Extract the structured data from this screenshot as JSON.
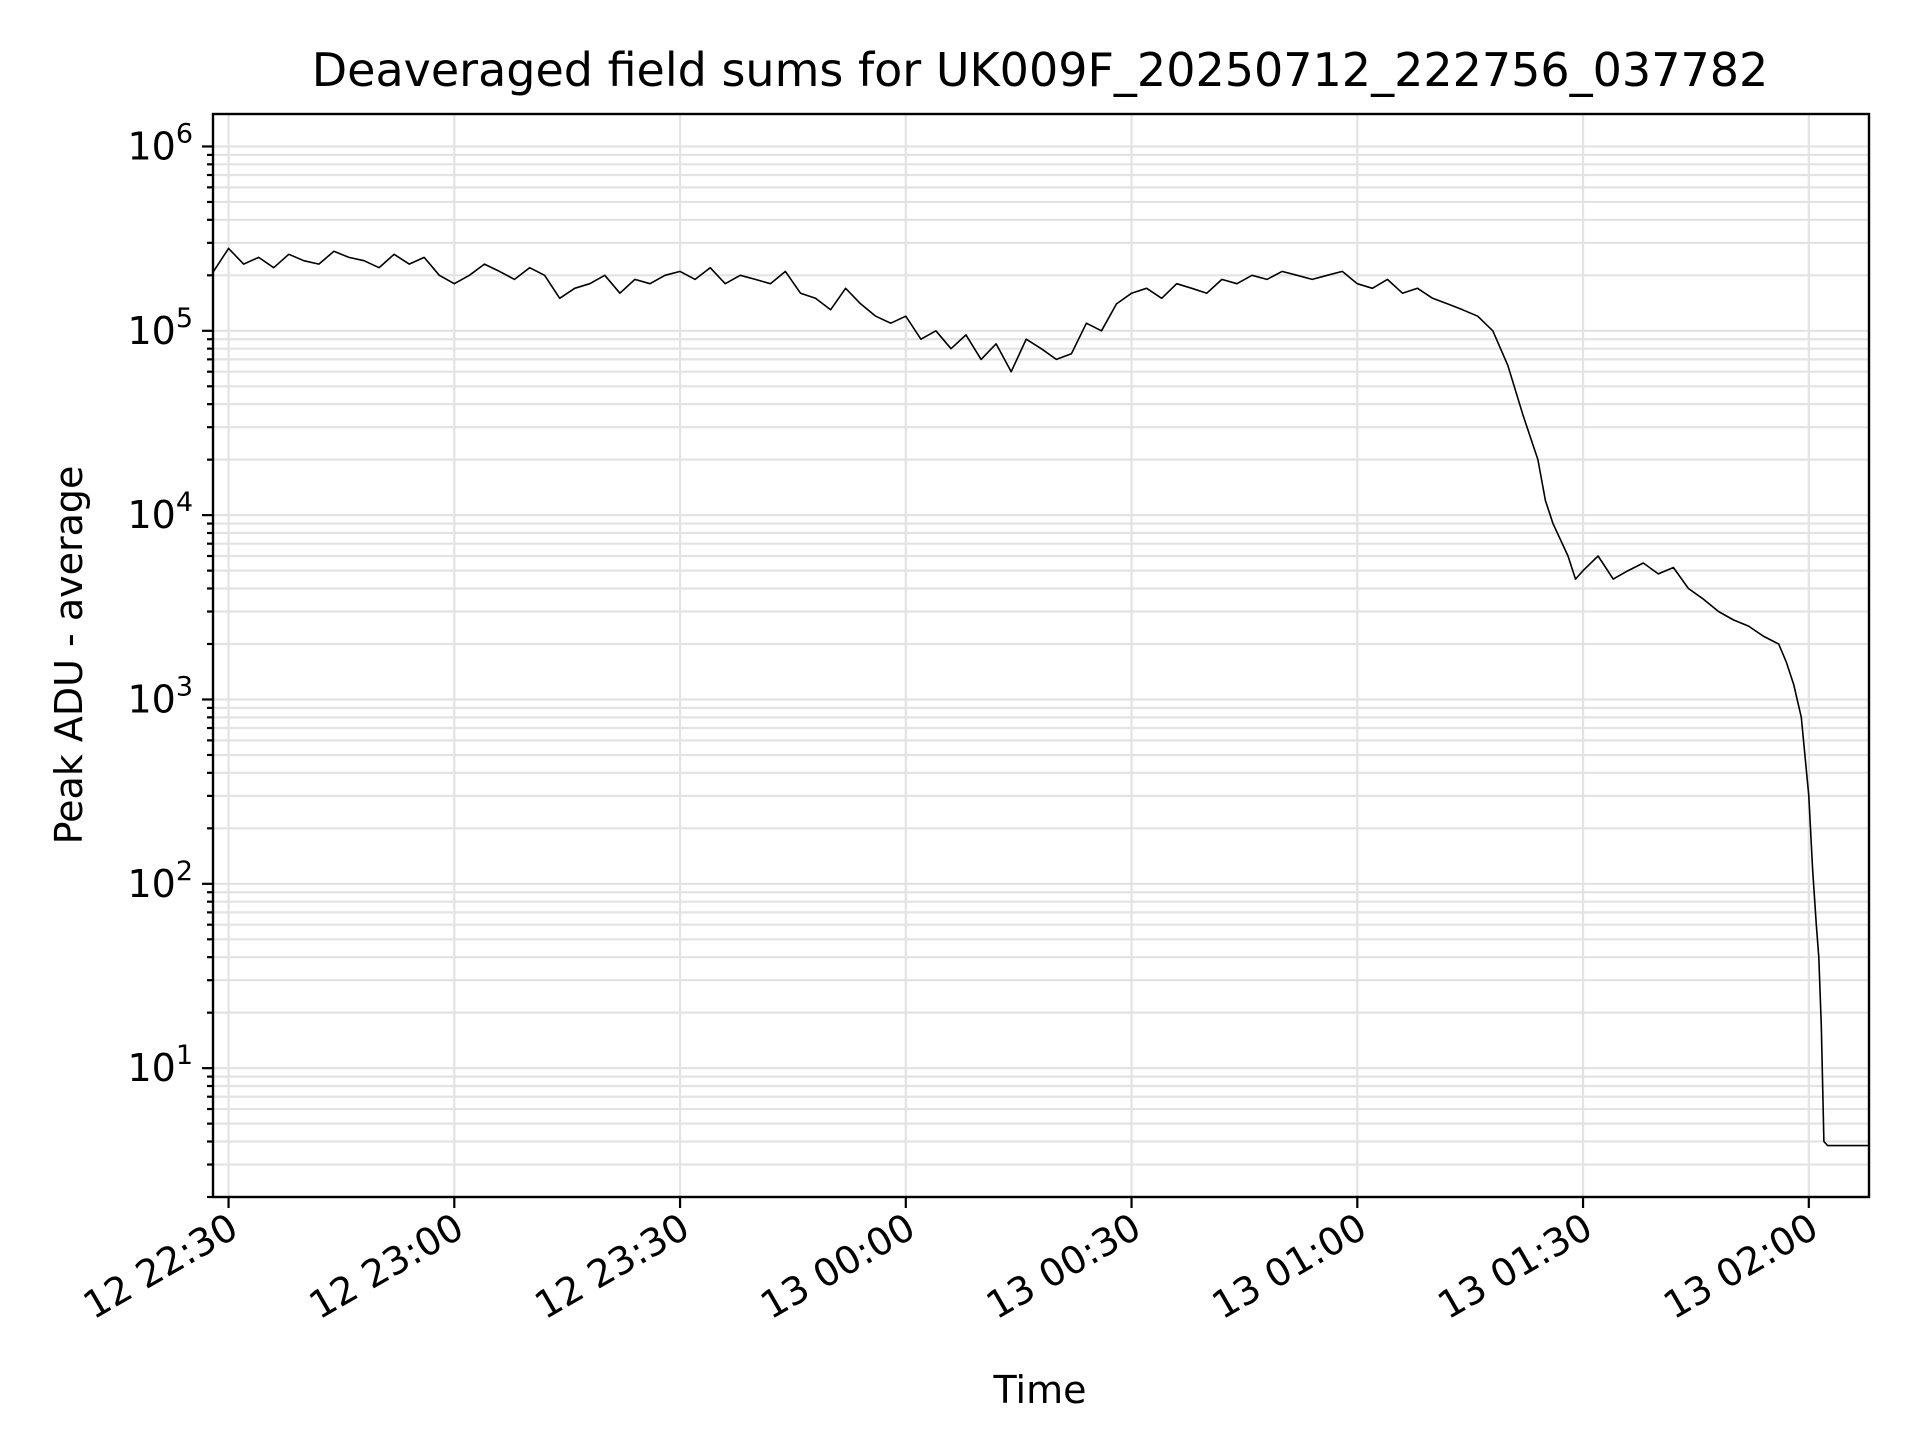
{
  "chart_data": {
    "type": "line",
    "title": "Deaveraged field sums for UK009F_20250712_222756_037782",
    "xlabel": "Time",
    "ylabel": "Peak ADU - average",
    "yscale": "log",
    "grid": "on (major and minor)",
    "series_color": "#000000",
    "grid_color": "#e3e3e3",
    "xlim": [
      "2025-07-12 22:27:56",
      "2025-07-13 02:08:00"
    ],
    "ylim": [
      2.0,
      1500000
    ],
    "xticks": [
      {
        "t": "2025-07-12 22:30:00",
        "label": "12 22:30"
      },
      {
        "t": "2025-07-12 23:00:00",
        "label": "12 23:00"
      },
      {
        "t": "2025-07-12 23:30:00",
        "label": "12 23:30"
      },
      {
        "t": "2025-07-13 00:00:00",
        "label": "13 00:00"
      },
      {
        "t": "2025-07-13 00:30:00",
        "label": "13 00:30"
      },
      {
        "t": "2025-07-13 01:00:00",
        "label": "13 01:00"
      },
      {
        "t": "2025-07-13 01:30:00",
        "label": "13 01:30"
      },
      {
        "t": "2025-07-13 02:00:00",
        "label": "13 02:00"
      }
    ],
    "yticks": [
      {
        "value": 10,
        "base": "10",
        "exp": "1"
      },
      {
        "value": 100,
        "base": "10",
        "exp": "2"
      },
      {
        "value": 1000,
        "base": "10",
        "exp": "3"
      },
      {
        "value": 10000,
        "base": "10",
        "exp": "4"
      },
      {
        "value": 100000,
        "base": "10",
        "exp": "5"
      },
      {
        "value": 1000000,
        "base": "10",
        "exp": "6"
      }
    ],
    "series": [
      {
        "x": [
          "2025-07-12 22:28:00",
          "2025-07-12 22:30:00",
          "2025-07-12 22:32:00",
          "2025-07-12 22:34:00",
          "2025-07-12 22:36:00",
          "2025-07-12 22:38:00",
          "2025-07-12 22:40:00",
          "2025-07-12 22:42:00",
          "2025-07-12 22:44:00",
          "2025-07-12 22:46:00",
          "2025-07-12 22:48:00",
          "2025-07-12 22:50:00",
          "2025-07-12 22:52:00",
          "2025-07-12 22:54:00",
          "2025-07-12 22:56:00",
          "2025-07-12 22:58:00",
          "2025-07-12 23:00:00",
          "2025-07-12 23:02:00",
          "2025-07-12 23:04:00",
          "2025-07-12 23:06:00",
          "2025-07-12 23:08:00",
          "2025-07-12 23:10:00",
          "2025-07-12 23:12:00",
          "2025-07-12 23:14:00",
          "2025-07-12 23:16:00",
          "2025-07-12 23:18:00",
          "2025-07-12 23:20:00",
          "2025-07-12 23:22:00",
          "2025-07-12 23:24:00",
          "2025-07-12 23:26:00",
          "2025-07-12 23:28:00",
          "2025-07-12 23:30:00",
          "2025-07-12 23:32:00",
          "2025-07-12 23:34:00",
          "2025-07-12 23:36:00",
          "2025-07-12 23:38:00",
          "2025-07-12 23:40:00",
          "2025-07-12 23:42:00",
          "2025-07-12 23:44:00",
          "2025-07-12 23:46:00",
          "2025-07-12 23:48:00",
          "2025-07-12 23:50:00",
          "2025-07-12 23:52:00",
          "2025-07-12 23:54:00",
          "2025-07-12 23:56:00",
          "2025-07-12 23:58:00",
          "2025-07-13 00:00:00",
          "2025-07-13 00:02:00",
          "2025-07-13 00:04:00",
          "2025-07-13 00:06:00",
          "2025-07-13 00:08:00",
          "2025-07-13 00:10:00",
          "2025-07-13 00:12:00",
          "2025-07-13 00:14:00",
          "2025-07-13 00:16:00",
          "2025-07-13 00:18:00",
          "2025-07-13 00:20:00",
          "2025-07-13 00:22:00",
          "2025-07-13 00:24:00",
          "2025-07-13 00:26:00",
          "2025-07-13 00:28:00",
          "2025-07-13 00:30:00",
          "2025-07-13 00:32:00",
          "2025-07-13 00:34:00",
          "2025-07-13 00:36:00",
          "2025-07-13 00:38:00",
          "2025-07-13 00:40:00",
          "2025-07-13 00:42:00",
          "2025-07-13 00:44:00",
          "2025-07-13 00:46:00",
          "2025-07-13 00:48:00",
          "2025-07-13 00:50:00",
          "2025-07-13 00:52:00",
          "2025-07-13 00:54:00",
          "2025-07-13 00:56:00",
          "2025-07-13 00:58:00",
          "2025-07-13 01:00:00",
          "2025-07-13 01:02:00",
          "2025-07-13 01:04:00",
          "2025-07-13 01:06:00",
          "2025-07-13 01:08:00",
          "2025-07-13 01:10:00",
          "2025-07-13 01:12:00",
          "2025-07-13 01:14:00",
          "2025-07-13 01:16:00",
          "2025-07-13 01:18:00",
          "2025-07-13 01:20:00",
          "2025-07-13 01:22:00",
          "2025-07-13 01:24:00",
          "2025-07-13 01:25:00",
          "2025-07-13 01:26:00",
          "2025-07-13 01:28:00",
          "2025-07-13 01:29:00",
          "2025-07-13 01:30:00",
          "2025-07-13 01:32:00",
          "2025-07-13 01:34:00",
          "2025-07-13 01:36:00",
          "2025-07-13 01:38:00",
          "2025-07-13 01:40:00",
          "2025-07-13 01:42:00",
          "2025-07-13 01:44:00",
          "2025-07-13 01:46:00",
          "2025-07-13 01:48:00",
          "2025-07-13 01:50:00",
          "2025-07-13 01:52:00",
          "2025-07-13 01:54:00",
          "2025-07-13 01:56:00",
          "2025-07-13 01:57:00",
          "2025-07-13 01:58:00",
          "2025-07-13 01:59:00",
          "2025-07-13 02:00:00",
          "2025-07-13 02:00:30",
          "2025-07-13 02:01:00",
          "2025-07-13 02:01:20",
          "2025-07-13 02:01:40",
          "2025-07-13 02:02:00",
          "2025-07-13 02:02:30",
          "2025-07-13 02:03:00",
          "2025-07-13 02:04:00",
          "2025-07-13 02:05:00",
          "2025-07-13 02:06:00",
          "2025-07-13 02:08:00"
        ],
        "y": [
          210000,
          280000,
          230000,
          250000,
          220000,
          260000,
          240000,
          230000,
          270000,
          250000,
          240000,
          220000,
          260000,
          230000,
          250000,
          200000,
          180000,
          200000,
          230000,
          210000,
          190000,
          220000,
          200000,
          150000,
          170000,
          180000,
          200000,
          160000,
          190000,
          180000,
          200000,
          210000,
          190000,
          220000,
          180000,
          200000,
          190000,
          180000,
          210000,
          160000,
          150000,
          130000,
          170000,
          140000,
          120000,
          110000,
          120000,
          90000,
          100000,
          80000,
          95000,
          70000,
          85000,
          60000,
          90000,
          80000,
          70000,
          75000,
          110000,
          100000,
          140000,
          160000,
          170000,
          150000,
          180000,
          170000,
          160000,
          190000,
          180000,
          200000,
          190000,
          210000,
          200000,
          190000,
          200000,
          210000,
          180000,
          170000,
          190000,
          160000,
          170000,
          150000,
          140000,
          130000,
          120000,
          100000,
          65000,
          35000,
          20000,
          12000,
          9000,
          6000,
          4500,
          5000,
          6000,
          4500,
          5000,
          5500,
          4800,
          5200,
          4000,
          3500,
          3000,
          2700,
          2500,
          2200,
          2000,
          1600,
          1200,
          800,
          300,
          120,
          60,
          40,
          17,
          4,
          3.8,
          3.8,
          3.8,
          3.8,
          3.8,
          3.8
        ]
      }
    ]
  }
}
